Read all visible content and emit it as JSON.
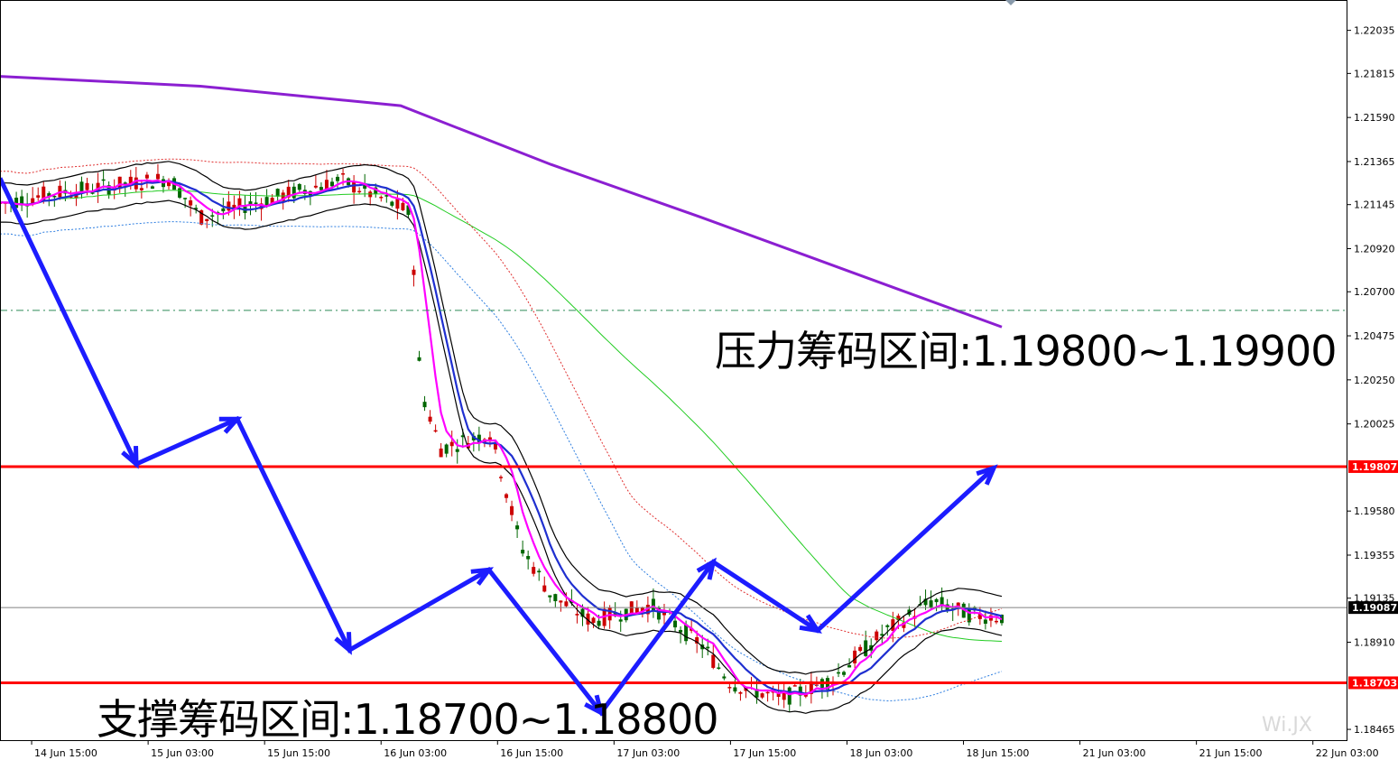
{
  "chart_data": {
    "type": "candlestick",
    "title": "",
    "y_ticks": [
      "1.22035",
      "1.21815",
      "1.21590",
      "1.21365",
      "1.21145",
      "1.20920",
      "1.20700",
      "1.20475",
      "1.20250",
      "1.20025",
      "1.19580",
      "1.19355",
      "1.19135",
      "1.18910",
      "1.18465"
    ],
    "y_range": [
      1.1841,
      1.2219
    ],
    "x_ticks": [
      "14 Jun 15:00",
      "15 Jun 03:00",
      "15 Jun 15:00",
      "16 Jun 03:00",
      "16 Jun 15:00",
      "17 Jun 03:00",
      "17 Jun 15:00",
      "18 Jun 03:00",
      "18 Jun 15:00",
      "21 Jun 03:00",
      "21 Jun 15:00",
      "22 Jun 03:00"
    ],
    "price_tags": [
      {
        "label": "1.19807",
        "value": 1.19807,
        "color": "#ff0000"
      },
      {
        "label": "1.19087",
        "value": 1.19087,
        "color": "#000000"
      },
      {
        "label": "1.18703",
        "value": 1.18703,
        "color": "#ff0000"
      }
    ],
    "horizontal_lines": [
      {
        "value": 1.19807,
        "color": "#ff0000",
        "style": "solid"
      },
      {
        "value": 1.18703,
        "color": "#ff0000",
        "style": "solid"
      },
      {
        "value": 1.20605,
        "color": "#2e8b57",
        "style": "dashdot"
      },
      {
        "value": 1.19087,
        "color": "#808080",
        "style": "solid"
      }
    ],
    "annotations": {
      "resistance": "压力筹码区间:1.19800~1.19900",
      "support": "支撑筹码区间:1.18700~1.18800"
    },
    "trend_path": {
      "color": "#1c1cff",
      "points": [
        [
          0.0,
          1.2128
        ],
        [
          0.085,
          1.1982
        ],
        [
          0.148,
          1.2005
        ],
        [
          0.218,
          1.1887
        ],
        [
          0.305,
          1.1928
        ],
        [
          0.375,
          1.1855
        ],
        [
          0.445,
          1.1932
        ],
        [
          0.51,
          1.1897
        ],
        [
          0.62,
          1.198
        ]
      ]
    },
    "series": [
      {
        "name": "",
        "color": "#8b1fd1"
      },
      {
        "name": "",
        "color": "#ff00ff"
      },
      {
        "name": "",
        "color": "#1f2fd0"
      },
      {
        "name": "",
        "color": "#000000"
      },
      {
        "name": "",
        "color": "#22cc22"
      },
      {
        "name": "",
        "color": "#e03030"
      },
      {
        "name": "",
        "color": "#2f7fe0"
      }
    ],
    "colors": {
      "up": "#cc0000",
      "down": "#006600",
      "grid": "#000000"
    }
  },
  "watermark": "Wi.JX"
}
